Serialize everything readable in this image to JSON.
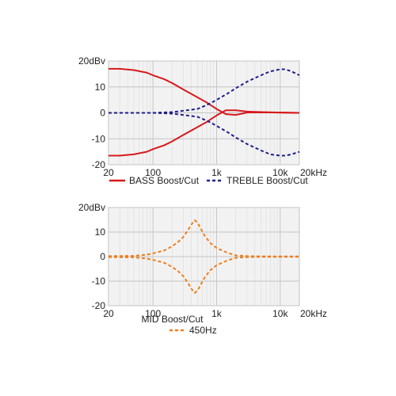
{
  "chart_data": [
    {
      "type": "line",
      "x_scale": "log",
      "xlim": [
        20,
        20000
      ],
      "ylim": [
        -20,
        20
      ],
      "y_ticks": [
        {
          "value": 20,
          "label": "20dBv"
        },
        {
          "value": 10,
          "label": "10"
        },
        {
          "value": 0,
          "label": "0"
        },
        {
          "value": -10,
          "label": "-10"
        },
        {
          "value": -20,
          "label": "-20"
        }
      ],
      "x_ticks": [
        {
          "value": 20,
          "label": "20"
        },
        {
          "value": 100,
          "label": "100"
        },
        {
          "value": 1000,
          "label": "1k"
        },
        {
          "value": 10000,
          "label": "10k"
        },
        {
          "value": 20000,
          "label": "20kHz"
        }
      ],
      "grid": true,
      "legend": "bottom",
      "series": [
        {
          "name": "BASS Boost/Cut",
          "color": "#d7191c",
          "style": "solid",
          "curves": [
            {
              "x": [
                20,
                30,
                50,
                80,
                100,
                150,
                200,
                300,
                500,
                700,
                1000,
                1400,
                2000,
                3000,
                5000,
                10000,
                20000
              ],
              "y": [
                17,
                17,
                16.5,
                15.5,
                14.5,
                13,
                11.5,
                9,
                6,
                4,
                1.5,
                -0.5,
                -0.8,
                0.1,
                0.2,
                0.1,
                0
              ]
            },
            {
              "x": [
                20,
                30,
                50,
                80,
                100,
                150,
                200,
                300,
                500,
                700,
                1000,
                1400,
                2000,
                3000,
                5000,
                10000,
                20000
              ],
              "y": [
                -16.5,
                -16.5,
                -16,
                -15,
                -14,
                -12.5,
                -11,
                -8.5,
                -5.5,
                -3.5,
                -1,
                1,
                1,
                0.5,
                0.3,
                0.1,
                0
              ]
            }
          ]
        },
        {
          "name": "TREBLE Boost/Cut",
          "color": "#1f1f8c",
          "style": "dashed",
          "curves": [
            {
              "x": [
                20,
                100,
                200,
                500,
                700,
                1000,
                1500,
                2000,
                3000,
                5000,
                7000,
                10000,
                12000,
                15000,
                20000
              ],
              "y": [
                0,
                0,
                0.3,
                1.5,
                3,
                5,
                7.5,
                9.5,
                12,
                14.5,
                16,
                16.8,
                16.8,
                16,
                14.5
              ]
            },
            {
              "x": [
                20,
                100,
                200,
                500,
                700,
                1000,
                1500,
                2000,
                3000,
                5000,
                7000,
                10000,
                12000,
                15000,
                20000
              ],
              "y": [
                0,
                0,
                -0.3,
                -1.5,
                -3,
                -5,
                -7.5,
                -9.5,
                -12,
                -14.5,
                -16,
                -16.5,
                -16.5,
                -16,
                -15
              ]
            }
          ]
        }
      ]
    },
    {
      "type": "line",
      "x_scale": "log",
      "xlim": [
        20,
        20000
      ],
      "ylim": [
        -20,
        20
      ],
      "y_ticks": [
        {
          "value": 20,
          "label": "20dBv"
        },
        {
          "value": 10,
          "label": "10"
        },
        {
          "value": 0,
          "label": "0"
        },
        {
          "value": -10,
          "label": "-10"
        },
        {
          "value": -20,
          "label": "-20"
        }
      ],
      "x_ticks": [
        {
          "value": 20,
          "label": "20"
        },
        {
          "value": 100,
          "label": "100"
        },
        {
          "value": 1000,
          "label": "1k"
        },
        {
          "value": 10000,
          "label": "10k"
        },
        {
          "value": 20000,
          "label": "20kHz"
        }
      ],
      "grid": true,
      "legend": "bottom",
      "legend_title": "MID Boost/Cut",
      "series": [
        {
          "name": "450Hz",
          "color": "#f07d1a",
          "style": "dashed",
          "curves": [
            {
              "x": [
                20,
                50,
                80,
                100,
                150,
                200,
                250,
                300,
                350,
                400,
                450,
                500,
                560,
                650,
                800,
                1000,
                1500,
                2000,
                3000,
                5000,
                10000,
                20000
              ],
              "y": [
                0.2,
                0.3,
                0.8,
                1.3,
                2.5,
                4.2,
                6,
                8,
                10.5,
                13,
                14.8,
                14,
                11.5,
                8.5,
                5.5,
                3.5,
                1.5,
                0.5,
                0.2,
                0.1,
                0.1,
                0.1
              ]
            },
            {
              "x": [
                20,
                50,
                80,
                100,
                150,
                200,
                250,
                300,
                350,
                400,
                450,
                500,
                560,
                650,
                800,
                1000,
                1500,
                2000,
                3000,
                5000,
                10000,
                20000
              ],
              "y": [
                -0.2,
                -0.3,
                -0.8,
                -1.3,
                -2.5,
                -4.2,
                -6,
                -8,
                -10.5,
                -13,
                -14.8,
                -14,
                -11.5,
                -8.5,
                -5.5,
                -3.5,
                -1.5,
                -0.5,
                -0.2,
                -0.1,
                -0.1,
                -0.1
              ]
            }
          ]
        }
      ]
    }
  ]
}
